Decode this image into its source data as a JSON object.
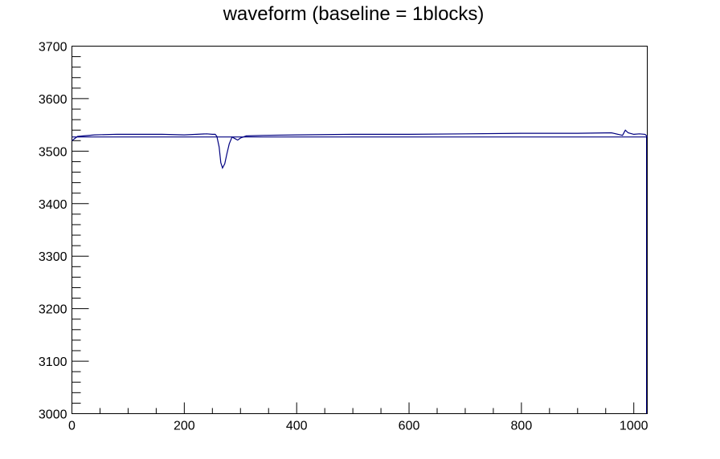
{
  "chart_data": {
    "type": "line",
    "title": "waveform (baseline = 1blocks)",
    "xlabel": "",
    "ylabel": "",
    "xlim": [
      0,
      1024
    ],
    "ylim": [
      3000,
      3700
    ],
    "x_ticks": [
      0,
      200,
      400,
      600,
      800,
      1000
    ],
    "y_ticks": [
      3000,
      3100,
      3200,
      3300,
      3400,
      3500,
      3600,
      3700
    ],
    "grid": false,
    "legend": "none",
    "series": [
      {
        "color": "#000080",
        "x": [
          0,
          10,
          40,
          80,
          120,
          160,
          200,
          240,
          250,
          255,
          258,
          262,
          265,
          268,
          272,
          276,
          280,
          285,
          290,
          295,
          300,
          310,
          340,
          400,
          500,
          600,
          700,
          800,
          900,
          960,
          980,
          985,
          990,
          1000,
          1010,
          1020,
          1024
        ],
        "y": [
          3520,
          3528,
          3531,
          3532,
          3532,
          3532,
          3531,
          3533,
          3532,
          3532,
          3528,
          3508,
          3478,
          3468,
          3476,
          3496,
          3514,
          3527,
          3524,
          3521,
          3525,
          3529,
          3530,
          3531,
          3532,
          3532,
          3533,
          3534,
          3534,
          3535,
          3530,
          3540,
          3535,
          3532,
          3533,
          3532,
          3528
        ]
      },
      {
        "color": "#000080",
        "x": [
          0,
          1024
        ],
        "y": [
          3527,
          3527
        ]
      }
    ]
  }
}
